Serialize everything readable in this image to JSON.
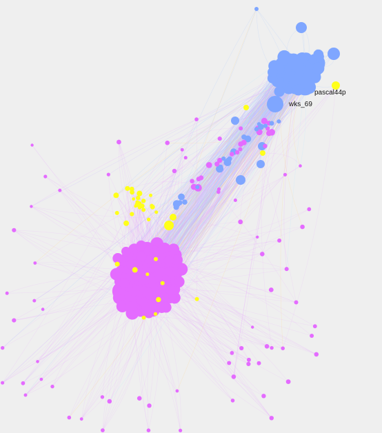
{
  "graph": {
    "background_color": "#efefef",
    "legend": [],
    "communities": [
      {
        "id": "blue-cluster",
        "color": "#7fa6ff",
        "approx_node_count": 230
      },
      {
        "id": "pink-cluster",
        "color": "#e46bff",
        "approx_node_count": 560
      }
    ],
    "highlight_color": "#ffff1a",
    "edge_colors": [
      "#c7b7ff",
      "#e9a7ff",
      "#a9c8ff",
      "#ffd48a",
      "#b9e7ff"
    ],
    "labeled_nodes": [
      {
        "id": "pascal44p",
        "label": "pascal44p",
        "community": "blue-cluster",
        "highlighted": true
      },
      {
        "id": "wks_69",
        "label": "wks_69",
        "community": "blue-cluster",
        "highlighted": false
      }
    ]
  }
}
